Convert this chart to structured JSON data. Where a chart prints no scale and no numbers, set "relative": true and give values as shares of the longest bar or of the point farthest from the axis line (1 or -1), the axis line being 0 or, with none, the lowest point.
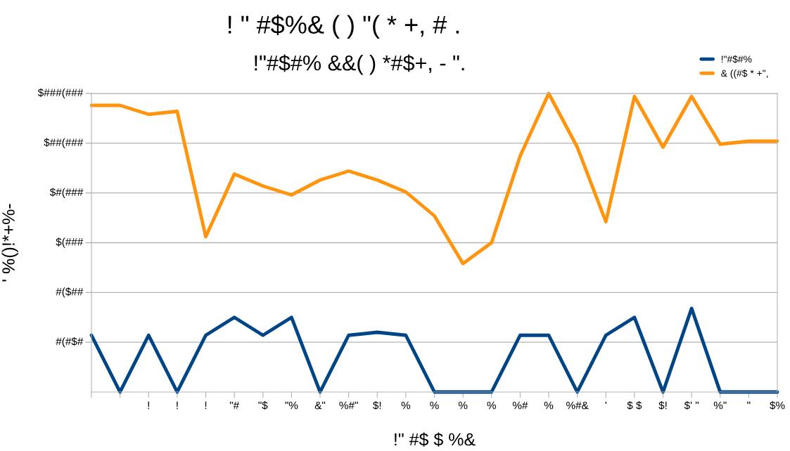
{
  "chart_data": {
    "type": "line",
    "relative": true,
    "title": "! \" #$%& ( ) \"( * +, # .",
    "subtitle": "!\"#$#% &&( ) *#$+, - \".",
    "xlabel": "!\" #$ $ %&",
    "ylabel": "' %()!*+%-",
    "categories": [
      null,
      null,
      "!",
      "!",
      "!",
      "\"#",
      "\"$",
      "\"%",
      "&\"",
      "%#\"",
      "$!",
      "%",
      "%",
      "%",
      "%",
      "%#",
      "%",
      "%#&",
      "'",
      "$ $",
      "$!",
      "$' \"",
      "%\"",
      "\"",
      "$%"
    ],
    "series": [
      {
        "name": "!\"#$#%",
        "color": "#004586",
        "values": [
          0.19,
          0,
          0.19,
          0,
          0.19,
          0.25,
          0.19,
          0.25,
          0,
          0.19,
          0.2,
          0.19,
          0,
          0,
          0,
          0.19,
          0.19,
          0,
          0.19,
          0.25,
          0,
          0.28,
          0,
          0,
          0
        ]
      },
      {
        "name": "& ((#$ * +\",",
        "color": "#ff950e",
        "values": [
          0.96,
          0.96,
          0.93,
          0.94,
          0.52,
          0.73,
          0.69,
          0.66,
          0.71,
          0.74,
          0.71,
          0.67,
          0.59,
          0.43,
          0.5,
          0.79,
          1,
          0.82,
          0.57,
          0.99,
          0.82,
          0.99,
          0.83,
          0.84,
          0.84
        ]
      }
    ],
    "annotations": [
      "#(#$#",
      "#($##",
      "$(###",
      "$#(###",
      "$##(###",
      "$###(###"
    ],
    "grid": "y",
    "legend": "top right",
    "marker": "none",
    "line_style": "solid"
  }
}
